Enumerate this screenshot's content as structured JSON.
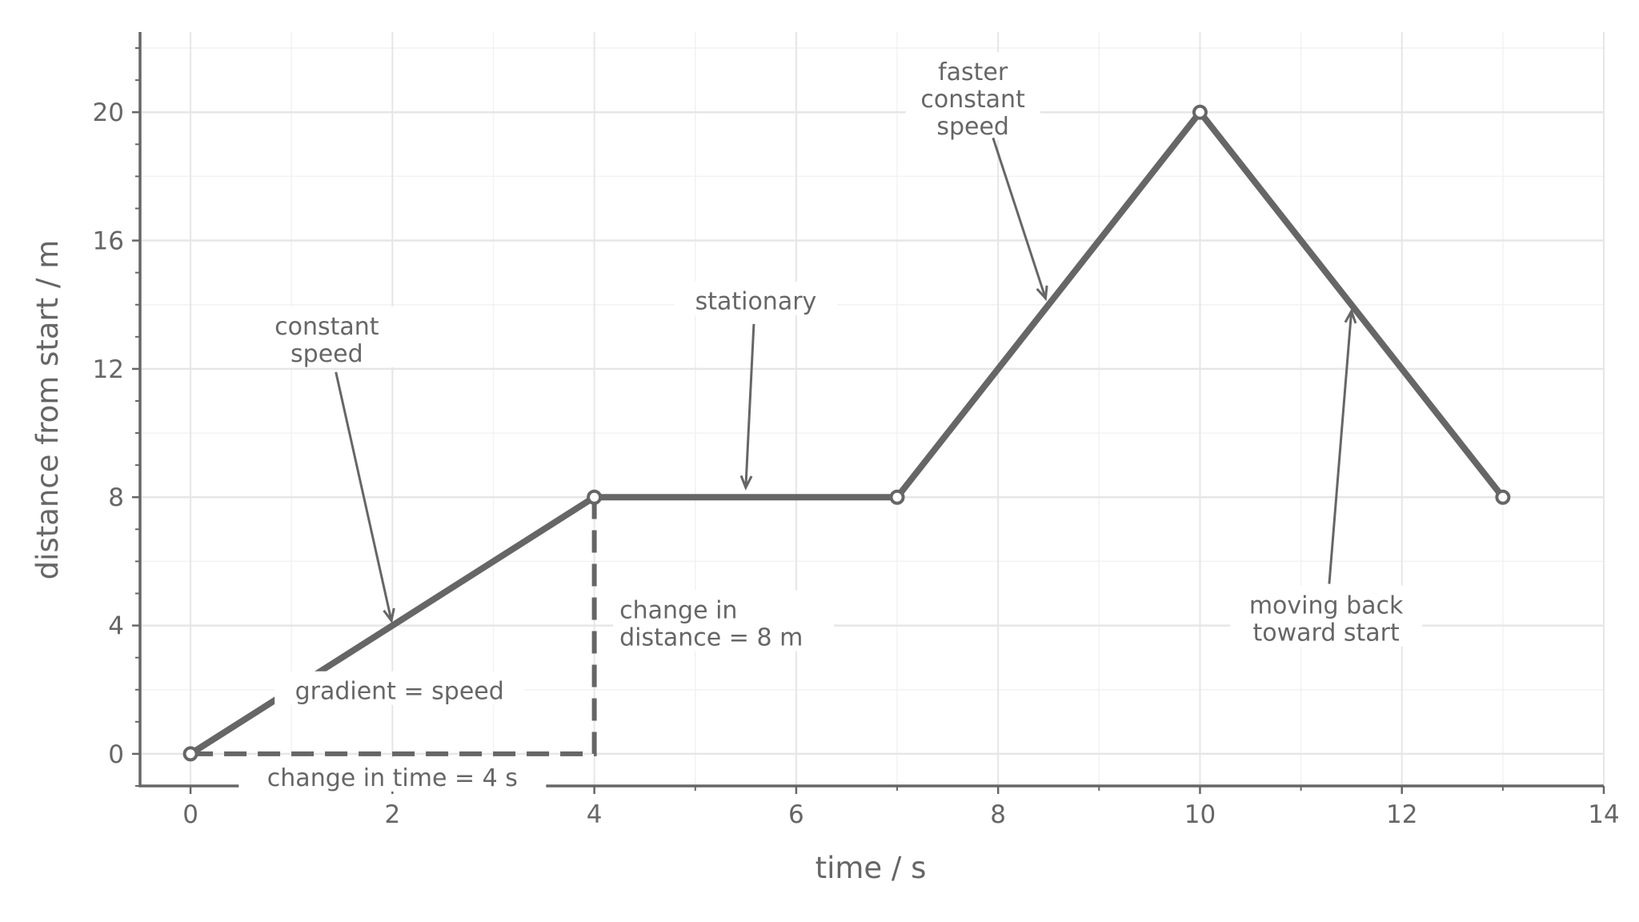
{
  "chart_data": {
    "type": "line",
    "title": "",
    "xlabel": "time / s",
    "ylabel": "distance from start / m",
    "xlim": [
      -0.5,
      14
    ],
    "ylim": [
      -1,
      22.5
    ],
    "x_ticks": [
      0,
      2,
      4,
      6,
      8,
      10,
      12,
      14
    ],
    "y_ticks": [
      0,
      4,
      8,
      12,
      16,
      20
    ],
    "x_minor_step": 1,
    "y_minor_step": 2,
    "grid": true,
    "legend": "none",
    "series": [
      {
        "x": [
          0,
          4,
          7,
          10,
          13
        ],
        "y": [
          0,
          8,
          8,
          20,
          8
        ]
      }
    ],
    "gradient_triangle": {
      "x": [
        0,
        4,
        4
      ],
      "y": [
        0,
        0,
        8
      ]
    },
    "annotations": [
      {
        "id": "constant-speed",
        "lines": [
          "constant",
          "speed"
        ],
        "text_xy": [
          1.35,
          12.9
        ],
        "arrow_from": [
          1.44,
          11.9
        ],
        "arrow_to": [
          1.99,
          4.15
        ]
      },
      {
        "id": "stationary",
        "lines": [
          "stationary"
        ],
        "text_xy": [
          5.6,
          14.1
        ],
        "arrow_from": [
          5.58,
          13.4
        ],
        "arrow_to": [
          5.5,
          8.3
        ]
      },
      {
        "id": "faster-constant-speed",
        "lines": [
          "faster",
          "constant",
          "speed"
        ],
        "text_xy": [
          7.75,
          20.4
        ],
        "arrow_from": [
          7.95,
          19.2
        ],
        "arrow_to": [
          8.47,
          14.2
        ]
      },
      {
        "id": "moving-back",
        "lines": [
          "moving back",
          "toward start"
        ],
        "text_xy": [
          11.25,
          4.2
        ],
        "arrow_from": [
          11.28,
          5.3
        ],
        "arrow_to": [
          11.5,
          13.8
        ]
      },
      {
        "id": "gradient-speed",
        "lines": [
          "gradient = speed"
        ],
        "text_xy": [
          2.07,
          1.95
        ],
        "arrow_from": null,
        "arrow_to": null
      },
      {
        "id": "change-in-time",
        "lines": [
          "change in time = 4 s"
        ],
        "text_xy": [
          2.0,
          -0.75
        ],
        "arrow_from": null,
        "arrow_to": null
      },
      {
        "id": "change-in-distance",
        "lines": [
          "change in",
          "distance = 8 m"
        ],
        "text_xy": [
          4.25,
          4.05
        ],
        "arrow_from": null,
        "arrow_to": null,
        "anchor": "start"
      }
    ]
  },
  "colors": {
    "line": "#666666",
    "grid_major": "#e6e6e6",
    "grid_minor": "#f2f2f2",
    "text": "#666666",
    "background": "#ffffff"
  }
}
